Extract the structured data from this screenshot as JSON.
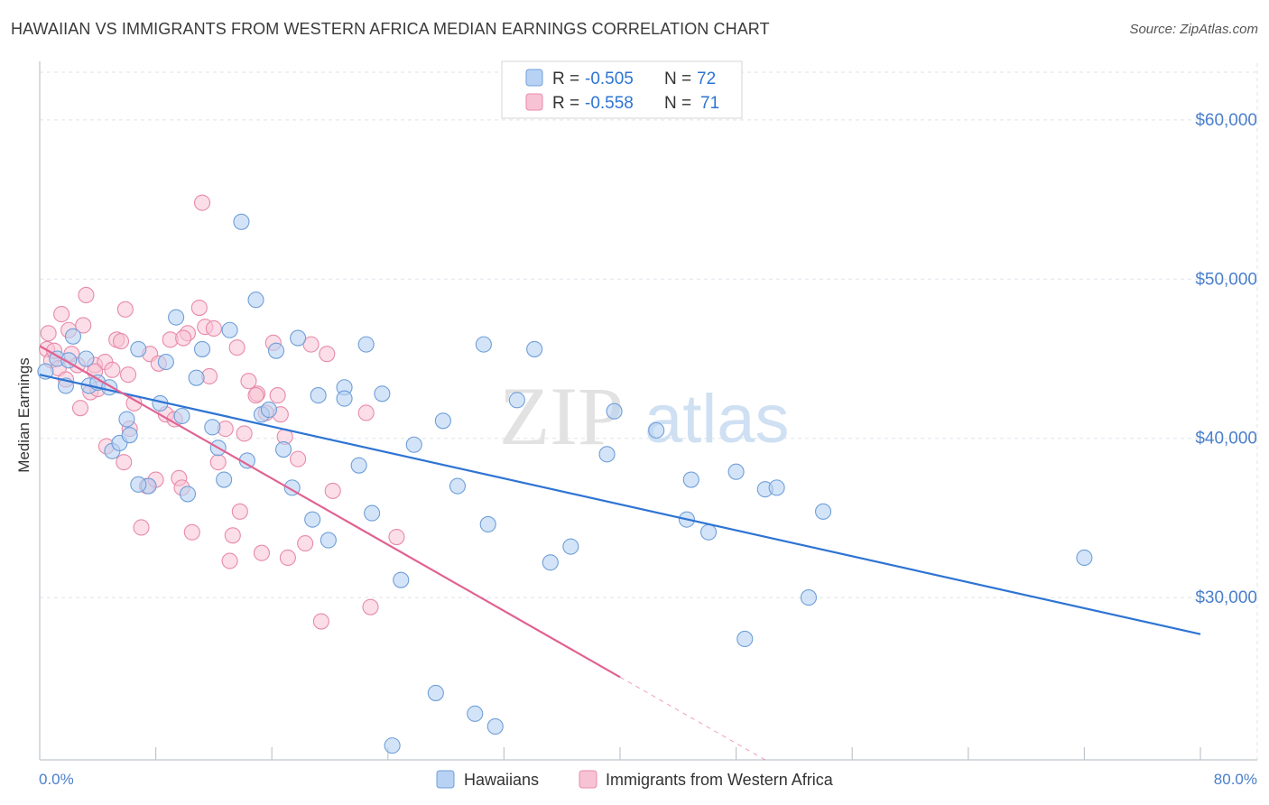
{
  "title": "HAWAIIAN VS IMMIGRANTS FROM WESTERN AFRICA MEDIAN EARNINGS CORRELATION CHART",
  "source": "Source: ZipAtlas.com",
  "watermark": {
    "zip": "ZIP",
    "atlas": "atlas"
  },
  "colors": {
    "hawaiians_fill": "#b7d2f3",
    "hawaiians_stroke": "#6f9fd8",
    "hawaiians_line": "#2e74d3",
    "immigrants_fill": "#f7c3d4",
    "immigrants_stroke": "#e88aaa",
    "immigrants_line": "#e06392",
    "axis_label": "#4a7fcc",
    "grid": "#dde3ea"
  },
  "stats_legend": [
    {
      "r_label": "R = ",
      "r_value": "-0.505",
      "n_label": "N = ",
      "n_value": "72"
    },
    {
      "r_label": "R = ",
      "r_value": "-0.558",
      "n_label": "N = ",
      "n_value": "71"
    }
  ],
  "chart_data": {
    "type": "scatter",
    "title": "HAWAIIAN VS IMMIGRANTS FROM WESTERN AFRICA MEDIAN EARNINGS CORRELATION CHART",
    "xlabel": "",
    "ylabel": "Median Earnings",
    "xlim": [
      0,
      80
    ],
    "ylim": [
      19800,
      63000
    ],
    "x_tick_labels": [
      "0.0%",
      "80.0%"
    ],
    "y_ticks": [
      30000,
      40000,
      50000,
      60000
    ],
    "y_tick_labels": [
      "$30,000",
      "$40,000",
      "$50,000",
      "$60,000"
    ],
    "grid": true,
    "legend_position": "bottom",
    "series": [
      {
        "name": "Hawaiians",
        "trend": {
          "x0": 0,
          "y0": 44000,
          "x1": 80,
          "y1": 27700
        },
        "points": [
          [
            0.4,
            44200
          ],
          [
            1.2,
            45000
          ],
          [
            1.8,
            43300
          ],
          [
            2.3,
            46400
          ],
          [
            3.2,
            45000
          ],
          [
            3.4,
            43300
          ],
          [
            4.0,
            43500
          ],
          [
            4.8,
            43200
          ],
          [
            5.0,
            39200
          ],
          [
            5.5,
            39700
          ],
          [
            6.0,
            41200
          ],
          [
            6.2,
            40200
          ],
          [
            6.8,
            45600
          ],
          [
            7.5,
            37000
          ],
          [
            8.3,
            42200
          ],
          [
            8.7,
            44800
          ],
          [
            9.4,
            47600
          ],
          [
            9.8,
            41400
          ],
          [
            10.2,
            36500
          ],
          [
            10.8,
            43800
          ],
          [
            11.2,
            45600
          ],
          [
            11.9,
            40700
          ],
          [
            12.3,
            39400
          ],
          [
            12.7,
            37400
          ],
          [
            13.1,
            46800
          ],
          [
            13.9,
            53600
          ],
          [
            14.3,
            38600
          ],
          [
            14.9,
            48700
          ],
          [
            15.3,
            41500
          ],
          [
            15.8,
            41800
          ],
          [
            16.3,
            45500
          ],
          [
            16.8,
            39300
          ],
          [
            17.4,
            36900
          ],
          [
            17.8,
            46300
          ],
          [
            18.8,
            34900
          ],
          [
            19.2,
            42700
          ],
          [
            19.9,
            33600
          ],
          [
            21.0,
            43200
          ],
          [
            21.0,
            42500
          ],
          [
            22.0,
            38300
          ],
          [
            22.5,
            45900
          ],
          [
            22.9,
            35300
          ],
          [
            23.6,
            42800
          ],
          [
            24.9,
            31100
          ],
          [
            25.8,
            39600
          ],
          [
            27.3,
            24000
          ],
          [
            27.8,
            41100
          ],
          [
            28.8,
            37000
          ],
          [
            30.0,
            22700
          ],
          [
            30.6,
            45900
          ],
          [
            30.9,
            34600
          ],
          [
            31.4,
            21900
          ],
          [
            32.9,
            42400
          ],
          [
            34.1,
            45600
          ],
          [
            35.2,
            32200
          ],
          [
            36.6,
            33200
          ],
          [
            39.1,
            39000
          ],
          [
            39.6,
            41700
          ],
          [
            42.5,
            40500
          ],
          [
            44.6,
            34900
          ],
          [
            44.9,
            37400
          ],
          [
            46.1,
            34100
          ],
          [
            48.0,
            37900
          ],
          [
            48.6,
            27400
          ],
          [
            50.0,
            36800
          ],
          [
            50.8,
            36900
          ],
          [
            53.0,
            30000
          ],
          [
            54.0,
            35400
          ],
          [
            72.0,
            32500
          ],
          [
            24.3,
            20700
          ],
          [
            2.0,
            44900
          ],
          [
            6.8,
            37100
          ]
        ]
      },
      {
        "name": "Immigrants from Western Africa",
        "trend": {
          "x0": 0,
          "y0": 45800,
          "x1": 40,
          "y1": 25000
        },
        "points": [
          [
            0.5,
            45600
          ],
          [
            0.6,
            46600
          ],
          [
            0.8,
            44900
          ],
          [
            1.0,
            45500
          ],
          [
            1.3,
            44400
          ],
          [
            1.5,
            47800
          ],
          [
            1.8,
            43700
          ],
          [
            2.0,
            46800
          ],
          [
            2.2,
            45300
          ],
          [
            2.6,
            44600
          ],
          [
            2.8,
            41900
          ],
          [
            3.0,
            47100
          ],
          [
            3.2,
            49000
          ],
          [
            3.5,
            42900
          ],
          [
            3.8,
            44600
          ],
          [
            4.0,
            43100
          ],
          [
            4.5,
            44800
          ],
          [
            4.6,
            39500
          ],
          [
            5.0,
            44300
          ],
          [
            5.3,
            46200
          ],
          [
            5.8,
            38500
          ],
          [
            5.9,
            48100
          ],
          [
            6.2,
            40600
          ],
          [
            6.5,
            42200
          ],
          [
            7.0,
            34400
          ],
          [
            7.4,
            37000
          ],
          [
            7.6,
            45300
          ],
          [
            8.0,
            37400
          ],
          [
            8.2,
            44700
          ],
          [
            8.7,
            41500
          ],
          [
            9.0,
            46200
          ],
          [
            9.3,
            41200
          ],
          [
            9.6,
            37500
          ],
          [
            9.8,
            36900
          ],
          [
            10.2,
            46600
          ],
          [
            10.5,
            34100
          ],
          [
            11.0,
            48200
          ],
          [
            11.4,
            47000
          ],
          [
            11.7,
            43900
          ],
          [
            12.0,
            46900
          ],
          [
            12.3,
            38500
          ],
          [
            12.8,
            40600
          ],
          [
            13.1,
            32300
          ],
          [
            13.3,
            33900
          ],
          [
            13.8,
            35400
          ],
          [
            14.1,
            40300
          ],
          [
            14.4,
            43600
          ],
          [
            15.0,
            42800
          ],
          [
            15.3,
            32800
          ],
          [
            15.6,
            41600
          ],
          [
            16.1,
            46000
          ],
          [
            16.4,
            42700
          ],
          [
            16.9,
            40100
          ],
          [
            17.1,
            32500
          ],
          [
            17.8,
            38700
          ],
          [
            18.3,
            33400
          ],
          [
            18.7,
            45900
          ],
          [
            19.4,
            28500
          ],
          [
            19.8,
            45300
          ],
          [
            20.2,
            36700
          ],
          [
            22.5,
            41600
          ],
          [
            22.8,
            29400
          ],
          [
            24.6,
            33800
          ],
          [
            11.2,
            54800
          ],
          [
            3.8,
            44200
          ],
          [
            5.6,
            46100
          ],
          [
            6.1,
            44000
          ],
          [
            14.9,
            42700
          ],
          [
            16.6,
            41500
          ],
          [
            9.9,
            46300
          ],
          [
            13.6,
            45700
          ]
        ]
      }
    ]
  }
}
